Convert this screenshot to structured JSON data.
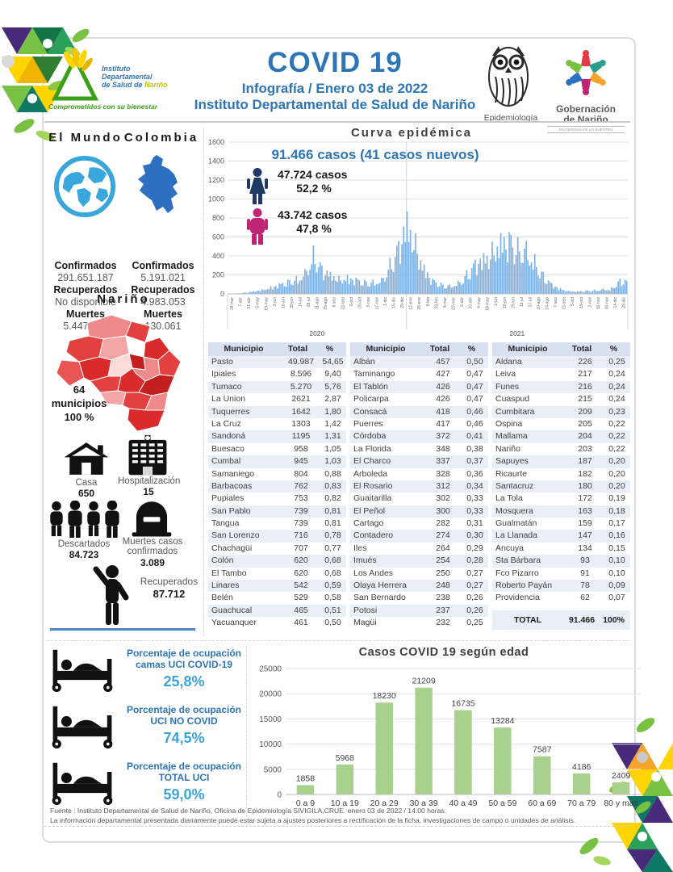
{
  "header": {
    "title": "COVID 19",
    "subtitle1": "Infografía / Enero 03 de 2022",
    "subtitle2": "Instituto Departamental de Salud de Nariño",
    "idsn": {
      "line1": "Instituto",
      "line2": "Departamental",
      "line3": "de Salud de",
      "line3b": "Nariño",
      "tagline": "Comprometidos con su bienestar"
    },
    "epi_label": "Epidemiología",
    "gob_name1": "Gobernación",
    "gob_name2": "de Nariño",
    "gob_tagline": "EN DEFENSA DE LO NUESTRO"
  },
  "world_colombia": {
    "world_title": "El Mundo",
    "colombia_title": "Colombia",
    "world": {
      "c_label": "Confirmados",
      "c": "291.651.187",
      "r_label": "Recuperados",
      "r": "No disponible",
      "m_label": "Muertes",
      "m": "5.447.340"
    },
    "colombia": {
      "c_label": "Confirmados",
      "c": "5.191.021",
      "r_label": "Recuperados",
      "r": "4.983.053",
      "m_label": "Muertes",
      "m": "130.061"
    }
  },
  "narino": {
    "title": "Nariño",
    "mun_count": "64",
    "mun_label": "municipios",
    "mun_pct": "100 %",
    "casa_label": "Casa",
    "casa_value": "650",
    "hosp_label": "Hospitalización",
    "hosp_value": "15",
    "desc_label": "Descartados",
    "desc_value": "84.723",
    "muertes_label": "Muertes casos confirmados",
    "muertes_value": "3.089",
    "recup_label": "Recuperados",
    "recup_value": "87.712"
  },
  "chart_data": [
    {
      "type": "bar",
      "title": "Curva epidémica",
      "annotation": "91.466 casos (41 casos nuevos)",
      "legend": [
        {
          "name": "mujeres",
          "cases": "47.724 casos",
          "pct": "52,2 %",
          "color": "#1f3864"
        },
        {
          "name": "hombres",
          "cases": "43.742 casos",
          "pct": "47,8 %",
          "color": "#bf2475"
        }
      ],
      "ylim": [
        0,
        1600
      ],
      "ytick_step": 200,
      "bar_color": "#7fb2e3",
      "year_labels": [
        "2020",
        "2021"
      ],
      "x": [
        "24-mar",
        "7-abr",
        "21-abr",
        "5-may",
        "19-may",
        "2-jun",
        "16-jun",
        "30-jun",
        "14-jul",
        "28-jul",
        "11-ago",
        "25-ago",
        "8-sep",
        "22-sep",
        "6-oct",
        "20-oct",
        "3-nov",
        "17-nov",
        "1-dic",
        "15-dic",
        "29-dic",
        "12-ene",
        "26-ene",
        "9-feb",
        "23-feb",
        "9-mar",
        "23-mar",
        "6-abr",
        "20-abr",
        "4-may",
        "18-may",
        "1-jun",
        "15-jun",
        "29-jun",
        "13-jul",
        "27-jul",
        "10-ago",
        "24-ago",
        "7-sep",
        "21-sep",
        "5-oct",
        "19-oct",
        "2-nov",
        "16-nov",
        "30-nov",
        "14-dic",
        "28-dic"
      ],
      "values": [
        5,
        8,
        15,
        30,
        50,
        80,
        110,
        150,
        190,
        260,
        510,
        300,
        230,
        190,
        200,
        170,
        150,
        150,
        170,
        380,
        560,
        870,
        640,
        310,
        160,
        120,
        100,
        140,
        250,
        360,
        430,
        550,
        640,
        650,
        600,
        560,
        420,
        230,
        110,
        60,
        35,
        30,
        35,
        45,
        55,
        70,
        160
      ]
    },
    {
      "type": "bar",
      "title": "Casos COVID 19  según edad",
      "categories": [
        "0 a 9",
        "10 a 19",
        "20 a 29",
        "30 a 39",
        "40 a 49",
        "50 a 59",
        "60 a 69",
        "70 a 79",
        "80 y mas"
      ],
      "values": [
        1858,
        5968,
        18230,
        21209,
        16735,
        13284,
        7587,
        4186,
        2409
      ],
      "ylim": [
        0,
        25000
      ],
      "ytick_step": 5000,
      "bar_color": "#a9d18e"
    }
  ],
  "table": {
    "headers": [
      "Municipio",
      "Total",
      "%"
    ],
    "groups": [
      [
        [
          "Pasto",
          "49.987",
          "54,65"
        ],
        [
          "Ipiales",
          "8.596",
          "9,40"
        ],
        [
          "Tumaco",
          "5.270",
          "5,76"
        ],
        [
          "La Union",
          "2621",
          "2,87"
        ],
        [
          "Tuquerres",
          "1642",
          "1,80"
        ],
        [
          "La Cruz",
          "1303",
          "1,42"
        ],
        [
          "Sandoná",
          "1195",
          "1,31"
        ],
        [
          "Buesaco",
          "958",
          "1,05"
        ],
        [
          "Cumbal",
          "945",
          "1,03"
        ],
        [
          "Samaniego",
          "804",
          "0,88"
        ],
        [
          "Barbacoas",
          "762",
          "0,83"
        ],
        [
          "Pupiales",
          "753",
          "0,82"
        ],
        [
          "San Pablo",
          "739",
          "0,81"
        ],
        [
          "Tangua",
          "739",
          "0,81"
        ],
        [
          "San Lorenzo",
          "716",
          "0,78"
        ],
        [
          "Chachagüi",
          "707",
          "0,77"
        ],
        [
          "Colón",
          "620",
          "0,68"
        ],
        [
          "El Tambo",
          "620",
          "0,68"
        ],
        [
          "Linares",
          "542",
          "0,59"
        ],
        [
          "Belén",
          "529",
          "0,58"
        ],
        [
          "Guachucal",
          "465",
          "0,51"
        ],
        [
          "Yacuanquer",
          "461",
          "0,50"
        ]
      ],
      [
        [
          "Albán",
          "457",
          "0,50"
        ],
        [
          "Taminango",
          "427",
          "0,47"
        ],
        [
          "El Tablón",
          "426",
          "0,47"
        ],
        [
          "Policarpa",
          "426",
          "0,47"
        ],
        [
          "Consacá",
          "418",
          "0,46"
        ],
        [
          "Puerres",
          "417",
          "0,46"
        ],
        [
          "Córdoba",
          "372",
          "0,41"
        ],
        [
          "La Florida",
          "348",
          "0,38"
        ],
        [
          "El Charco",
          "337",
          "0,37"
        ],
        [
          "Arboleda",
          "328",
          "0,36"
        ],
        [
          "El Rosario",
          "312",
          "0,34"
        ],
        [
          "Guaitarilla",
          "302",
          "0,33"
        ],
        [
          "El Peñol",
          "300",
          "0,33"
        ],
        [
          "Cartago",
          "282",
          "0,31"
        ],
        [
          "Contadero",
          "274",
          "0,30"
        ],
        [
          "Iles",
          "264",
          "0,29"
        ],
        [
          "Imués",
          "254",
          "0,28"
        ],
        [
          "Los Andes",
          "250",
          "0,27"
        ],
        [
          "Olaya Herrera",
          "248",
          "0,27"
        ],
        [
          "San Bernardo",
          "238",
          "0,26"
        ],
        [
          "Potosi",
          "237",
          "0,26"
        ],
        [
          "Magüi",
          "232",
          "0,25"
        ]
      ],
      [
        [
          "Aldana",
          "226",
          "0,25"
        ],
        [
          "Leiva",
          "217",
          "0,24"
        ],
        [
          "Funes",
          "216",
          "0,24"
        ],
        [
          "Cuaspud",
          "215",
          "0,24"
        ],
        [
          "Cumbitara",
          "209",
          "0,23"
        ],
        [
          "Ospina",
          "205",
          "0,22"
        ],
        [
          "Mallama",
          "204",
          "0,22"
        ],
        [
          "Nariño",
          "203",
          "0,22"
        ],
        [
          "Sapuyes",
          "187",
          "0,20"
        ],
        [
          "Ricaurte",
          "182",
          "0,20"
        ],
        [
          "Santacruz",
          "180",
          "0,20"
        ],
        [
          "La Tola",
          "172",
          "0,19"
        ],
        [
          "Mosquera",
          "163",
          "0,18"
        ],
        [
          "Gualmatán",
          "159",
          "0,17"
        ],
        [
          "La Llanada",
          "147",
          "0,16"
        ],
        [
          "Ancuya",
          "134",
          "0,15"
        ],
        [
          "Sta Bárbara",
          "93",
          "0,10"
        ],
        [
          "Fco Pizarro",
          "91",
          "0,10"
        ],
        [
          "Roberto Payán",
          "78",
          "0,09"
        ],
        [
          "Providencia",
          "62",
          "0,07"
        ]
      ]
    ],
    "total_label": "TOTAL",
    "total_value": "91.466",
    "total_pct": "100%"
  },
  "uci": {
    "items": [
      {
        "label": "Porcentaje de ocupación camas UCI COVID-19",
        "value": "25,8%"
      },
      {
        "label": "Porcentaje de ocupación UCI NO COVID",
        "value": "74,5%"
      },
      {
        "label": "Porcentaje de ocupación TOTAL UCI",
        "value": "59,0%"
      }
    ]
  },
  "footer": {
    "line1": "Fuente : Instituto Departamental de Salud de Nariño, Oficina de Epidemiología SIVIGILA,CRUE.  enero 03 de 2022 / 14:00  horas.",
    "line2": "La información departamental presentada diariamente puede estar sujeta a ajustes posteriores a  rectificación de la ficha, investigaciones de campo o unidades de análisis."
  }
}
